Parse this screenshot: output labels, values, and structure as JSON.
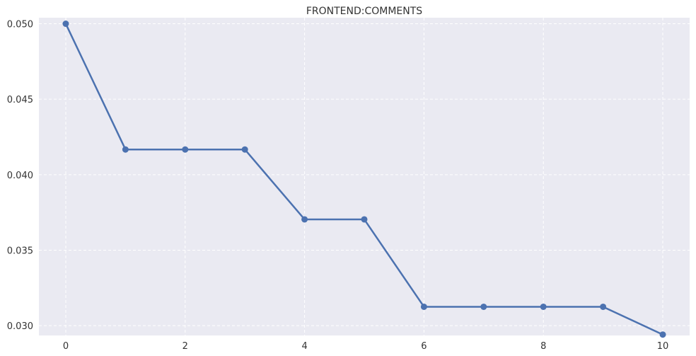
{
  "chart_data": {
    "type": "line",
    "title": "FRONTEND:COMMENTS",
    "xlabel": "",
    "ylabel": "",
    "x": [
      0,
      1,
      2,
      3,
      4,
      5,
      6,
      7,
      8,
      9,
      10
    ],
    "series": [
      {
        "values": [
          0.05,
          0.04167,
          0.04167,
          0.04167,
          0.03704,
          0.03704,
          0.03125,
          0.03125,
          0.03125,
          0.03125,
          0.02941
        ]
      }
    ],
    "xlim": [
      -0.45,
      10.45
    ],
    "ylim": [
      0.02935,
      0.0504
    ],
    "xticks": [
      0,
      2,
      4,
      6,
      8,
      10
    ],
    "xtick_labels": [
      "0",
      "2",
      "4",
      "6",
      "8",
      "10"
    ],
    "yticks": [
      0.03,
      0.035,
      0.04,
      0.045,
      0.05
    ],
    "ytick_labels": [
      "0.030",
      "0.035",
      "0.040",
      "0.045",
      "0.050"
    ],
    "grid": true,
    "legend": "none",
    "colors": {
      "line": "#4c72b0",
      "plot_background": "#eaeaf2",
      "grid": "#ffffff",
      "text": "#333333"
    }
  }
}
